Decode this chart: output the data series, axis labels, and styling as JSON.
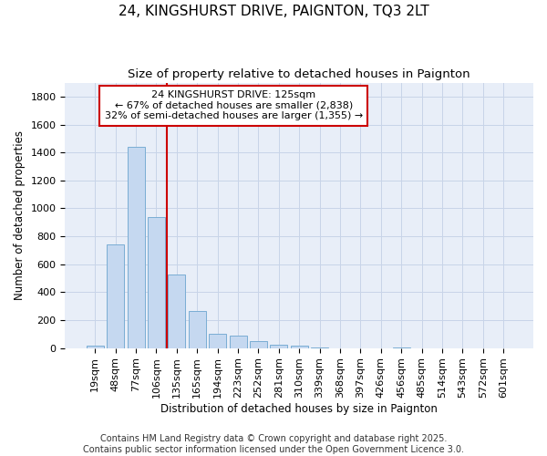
{
  "title": "24, KINGSHURST DRIVE, PAIGNTON, TQ3 2LT",
  "subtitle": "Size of property relative to detached houses in Paignton",
  "xlabel": "Distribution of detached houses by size in Paignton",
  "ylabel": "Number of detached properties",
  "categories": [
    "19sqm",
    "48sqm",
    "77sqm",
    "106sqm",
    "135sqm",
    "165sqm",
    "194sqm",
    "223sqm",
    "252sqm",
    "281sqm",
    "310sqm",
    "339sqm",
    "368sqm",
    "397sqm",
    "426sqm",
    "456sqm",
    "485sqm",
    "514sqm",
    "543sqm",
    "572sqm",
    "601sqm"
  ],
  "values": [
    20,
    740,
    1440,
    940,
    530,
    265,
    100,
    90,
    50,
    25,
    15,
    5,
    0,
    0,
    0,
    5,
    0,
    0,
    0,
    0,
    0
  ],
  "bar_color": "#c5d8f0",
  "bar_edge_color": "#7aadd4",
  "vline_x": 3.5,
  "vline_color": "#cc0000",
  "annotation_line1": "24 KINGSHURST DRIVE: 125sqm",
  "annotation_line2": "← 67% of detached houses are smaller (2,838)",
  "annotation_line3": "32% of semi-detached houses are larger (1,355) →",
  "annotation_edge_color": "#cc0000",
  "ylim": [
    0,
    1900
  ],
  "yticks": [
    0,
    200,
    400,
    600,
    800,
    1000,
    1200,
    1400,
    1600,
    1800
  ],
  "bg_color": "#ffffff",
  "plot_bg_color": "#e8eef8",
  "grid_color": "#c8d4e8",
  "footer_line1": "Contains HM Land Registry data © Crown copyright and database right 2025.",
  "footer_line2": "Contains public sector information licensed under the Open Government Licence 3.0.",
  "title_fontsize": 11,
  "subtitle_fontsize": 9.5,
  "axis_label_fontsize": 8.5,
  "tick_fontsize": 8,
  "annotation_fontsize": 8,
  "footer_fontsize": 7
}
